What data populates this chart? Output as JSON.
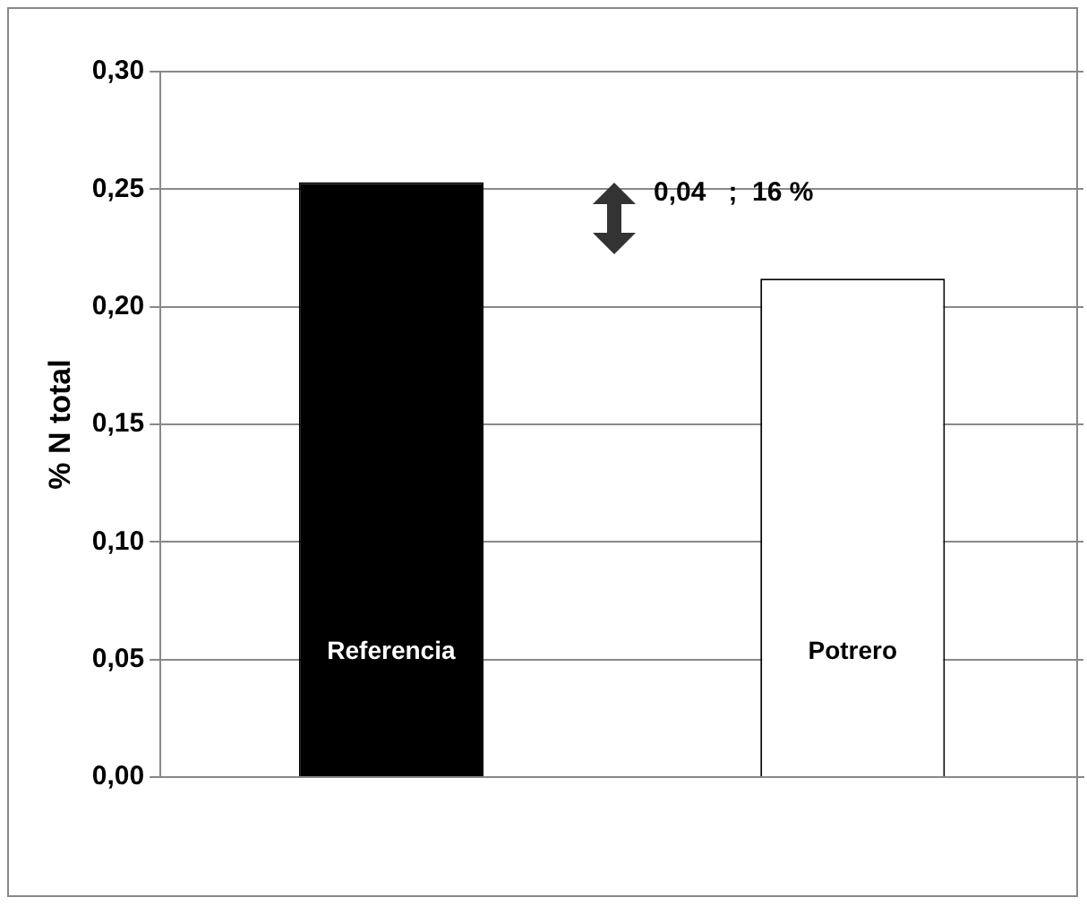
{
  "chart_data": {
    "type": "bar",
    "ylabel": "% N total",
    "categories": [
      "Referencia",
      "Potrero"
    ],
    "values": [
      0.253,
      0.212
    ],
    "colors": [
      "#000000",
      "#ffffff"
    ],
    "ylim": [
      0,
      0.3
    ],
    "yticks": [
      {
        "value": 0,
        "label": "0,00"
      },
      {
        "value": 0.05,
        "label": "0,05"
      },
      {
        "value": 0.1,
        "label": "0,10"
      },
      {
        "value": 0.15,
        "label": "0,15"
      },
      {
        "value": 0.2,
        "label": "0,20"
      },
      {
        "value": 0.25,
        "label": "0,25"
      },
      {
        "value": 0.3,
        "label": "0,30"
      }
    ],
    "grid": "y",
    "annotations": [
      "0,04   ;  16 %"
    ]
  }
}
